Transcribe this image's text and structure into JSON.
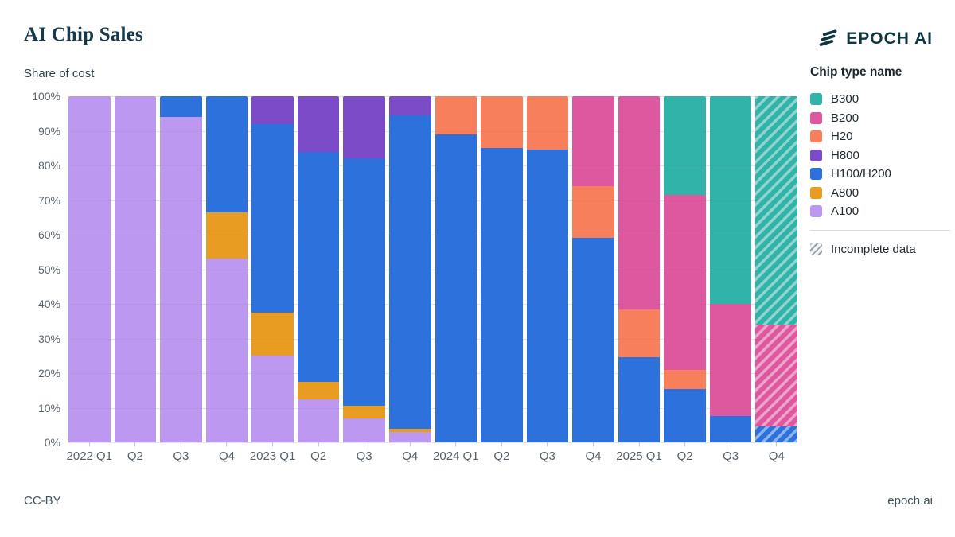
{
  "header": {
    "title": "AI Chip Sales",
    "subtitle": "Share of cost",
    "brand": "EPOCH AI"
  },
  "footer": {
    "license": "CC-BY",
    "site": "epoch.ai"
  },
  "legend": {
    "title": "Chip type name",
    "incomplete_label": "Incomplete data"
  },
  "colors": {
    "brand_ink": "#0e3641",
    "title_ink": "#16394b",
    "axis_text": "#555f67",
    "gridline": "#ebedf0"
  },
  "chart_data": {
    "type": "bar",
    "stacked": true,
    "unit": "%",
    "title": "AI Chip Sales",
    "ylabel": "Share of cost",
    "ylim": [
      0,
      100
    ],
    "grid": true,
    "legend_position": "right",
    "y_ticks": [
      "0%",
      "10%",
      "20%",
      "30%",
      "40%",
      "50%",
      "60%",
      "70%",
      "80%",
      "90%",
      "100%"
    ],
    "categories": [
      "2022 Q1",
      "Q2",
      "Q3",
      "Q4",
      "2023 Q1",
      "Q2",
      "Q3",
      "Q4",
      "2024 Q1",
      "Q2",
      "Q3",
      "Q4",
      "2025 Q1",
      "Q2",
      "Q3",
      "Q4"
    ],
    "incomplete_indices": [
      15
    ],
    "incomplete_note": "2025 Q4 hatched = incomplete data",
    "series": [
      {
        "name": "A100",
        "color": "#BC98F1",
        "values": [
          100,
          100,
          94,
          53,
          25,
          12.5,
          7,
          3,
          0,
          0,
          0,
          0,
          0,
          0,
          0,
          0
        ]
      },
      {
        "name": "A800",
        "color": "#E99C22",
        "values": [
          0,
          0,
          0,
          13.5,
          12.5,
          5,
          3.5,
          1,
          0,
          0,
          0,
          0,
          0,
          0,
          0,
          0
        ]
      },
      {
        "name": "H100/H200",
        "color": "#2D72DC",
        "values": [
          0,
          0,
          6,
          33.5,
          54.5,
          66.5,
          71.5,
          90.5,
          89,
          85,
          84.5,
          59,
          24.5,
          15.5,
          7.5,
          4.5
        ]
      },
      {
        "name": "H800",
        "color": "#7C4BC8",
        "values": [
          0,
          0,
          0,
          0,
          8,
          16,
          18,
          5.5,
          0,
          0,
          0,
          0,
          0,
          0,
          0,
          0
        ]
      },
      {
        "name": "H20",
        "color": "#F87F5B",
        "values": [
          0,
          0,
          0,
          0,
          0,
          0,
          0,
          0,
          11,
          15,
          15.5,
          15,
          14,
          5.5,
          0,
          0
        ]
      },
      {
        "name": "B200",
        "color": "#DE58A0",
        "values": [
          0,
          0,
          0,
          0,
          0,
          0,
          0,
          0,
          0,
          0,
          0,
          26,
          61.5,
          50.5,
          32.5,
          29.5
        ]
      },
      {
        "name": "B300",
        "color": "#31B3AA",
        "values": [
          0,
          0,
          0,
          0,
          0,
          0,
          0,
          0,
          0,
          0,
          0,
          0,
          0,
          28.5,
          60,
          66
        ]
      }
    ]
  }
}
